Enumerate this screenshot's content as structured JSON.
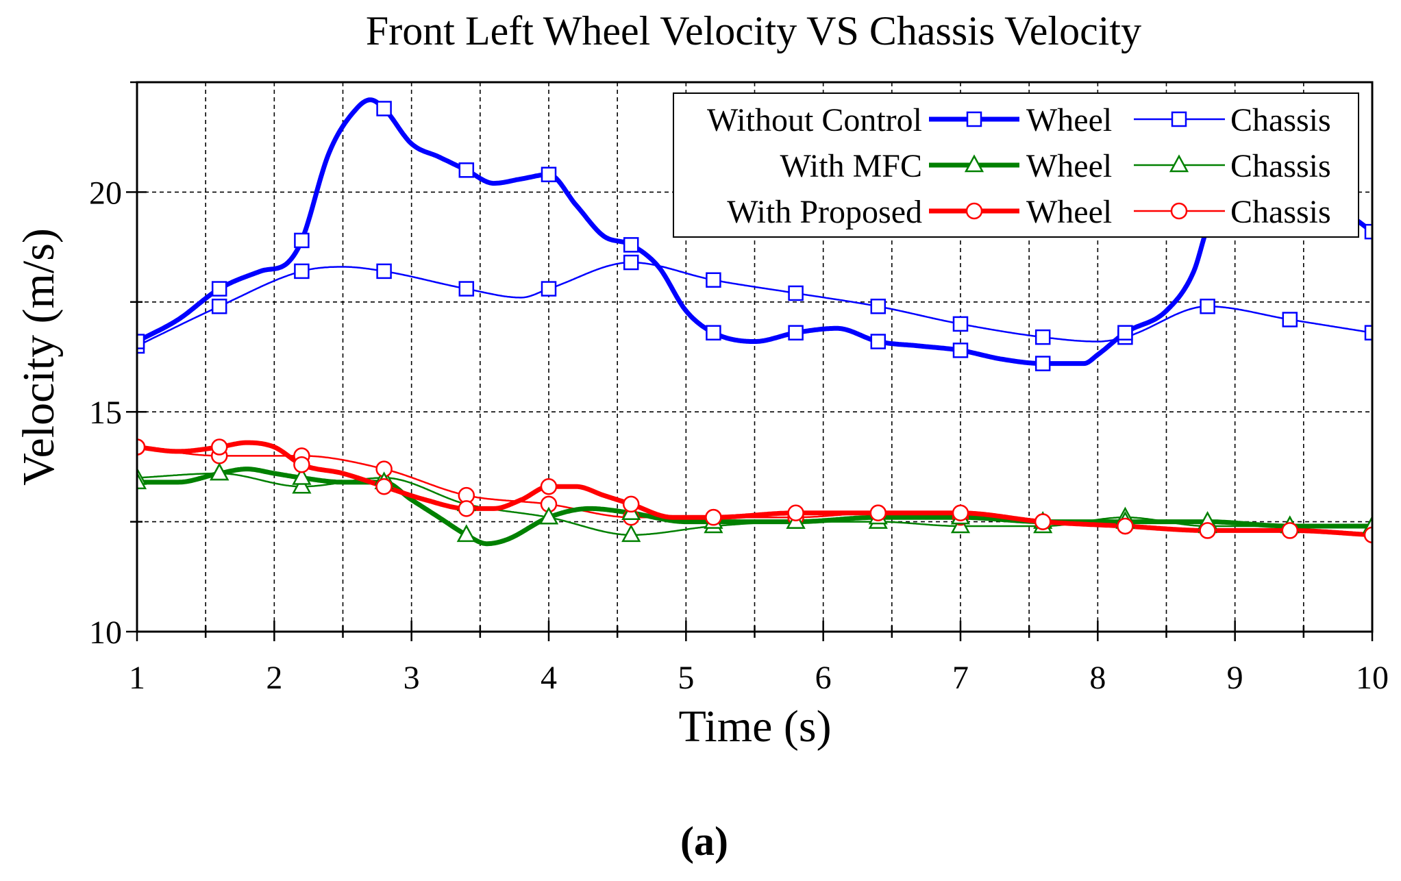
{
  "chart_data": {
    "type": "line",
    "title": "Front Left Wheel Velocity VS Chassis Velocity",
    "xlabel": "Time (s)",
    "ylabel": "Velocity (m/s)",
    "panel_label": "(a)",
    "xlim": [
      1,
      10
    ],
    "ylim": [
      10,
      22.5
    ],
    "x_ticks": [
      1,
      2,
      3,
      4,
      5,
      6,
      7,
      8,
      9,
      10
    ],
    "y_ticks": [
      10,
      15,
      20
    ],
    "grid": true,
    "legend_position": "top-right",
    "legend_rows": [
      {
        "label": "Without Control",
        "entries": [
          "Wheel",
          "Chassis"
        ]
      },
      {
        "label": "With MFC",
        "entries": [
          "Wheel",
          "Chassis"
        ]
      },
      {
        "label": "With Proposed",
        "entries": [
          "Wheel",
          "Chassis"
        ]
      }
    ],
    "colors": {
      "without_control": "#0000ff",
      "with_mfc": "#008000",
      "with_proposed": "#ff0000"
    },
    "marker_x": [
      1,
      1.6,
      2.2,
      2.8,
      3.4,
      4,
      4.6,
      5.2,
      5.8,
      6.4,
      7,
      7.6,
      8.2,
      8.8,
      9.4,
      10
    ],
    "series": [
      {
        "group": "Without Control",
        "name": "Wheel",
        "color": "#0000ff",
        "marker": "square",
        "weight": "thick",
        "x": [
          1,
          1.3,
          1.6,
          1.9,
          2.1,
          2.2,
          2.4,
          2.6,
          2.7,
          2.8,
          3.0,
          3.2,
          3.4,
          3.6,
          3.8,
          4.0,
          4.2,
          4.4,
          4.6,
          4.8,
          5.0,
          5.2,
          5.5,
          5.8,
          6.1,
          6.4,
          6.7,
          7.0,
          7.3,
          7.6,
          7.9,
          8.0,
          8.2,
          8.5,
          8.7,
          8.8,
          8.9,
          9.0,
          9.4,
          9.6,
          10
        ],
        "y": [
          16.6,
          17.1,
          17.8,
          18.2,
          18.4,
          18.9,
          20.9,
          21.9,
          22.1,
          21.9,
          21.1,
          20.8,
          20.5,
          20.2,
          20.3,
          20.4,
          19.7,
          19.0,
          18.8,
          18.3,
          17.3,
          16.8,
          16.6,
          16.8,
          16.9,
          16.6,
          16.5,
          16.4,
          16.2,
          16.1,
          16.1,
          16.3,
          16.8,
          17.3,
          18.2,
          19.2,
          19.8,
          20.2,
          20.3,
          20.0,
          19.1
        ]
      },
      {
        "group": "Without Control",
        "name": "Chassis",
        "color": "#0000ff",
        "marker": "square",
        "weight": "thin",
        "x": [
          1,
          1.6,
          2.2,
          2.5,
          2.8,
          3.4,
          3.8,
          4.0,
          4.6,
          5.2,
          5.8,
          6.4,
          7,
          7.6,
          8.0,
          8.2,
          8.8,
          9.4,
          10
        ],
        "y": [
          16.5,
          17.4,
          18.2,
          18.3,
          18.2,
          17.8,
          17.6,
          17.8,
          18.4,
          18.0,
          17.7,
          17.4,
          17.0,
          16.7,
          16.6,
          16.7,
          17.4,
          17.1,
          16.8
        ]
      },
      {
        "group": "With MFC",
        "name": "Wheel",
        "color": "#008000",
        "marker": "triangle",
        "weight": "thick",
        "x": [
          1,
          1.3,
          1.6,
          1.8,
          2.0,
          2.2,
          2.5,
          2.8,
          3.0,
          3.2,
          3.4,
          3.55,
          3.7,
          4.0,
          4.3,
          4.6,
          5.0,
          5.2,
          5.8,
          6.4,
          7,
          7.6,
          8.2,
          8.8,
          9.4,
          10
        ],
        "y": [
          13.4,
          13.4,
          13.6,
          13.7,
          13.6,
          13.5,
          13.4,
          13.4,
          13.0,
          12.6,
          12.2,
          12.0,
          12.1,
          12.6,
          12.8,
          12.7,
          12.5,
          12.5,
          12.5,
          12.6,
          12.6,
          12.5,
          12.5,
          12.5,
          12.4,
          12.4
        ]
      },
      {
        "group": "With MFC",
        "name": "Chassis",
        "color": "#008000",
        "marker": "triangle",
        "weight": "thin",
        "x": [
          1,
          1.6,
          2.2,
          2.8,
          3.4,
          4,
          4.6,
          5.2,
          5.8,
          6.4,
          7,
          7.6,
          8.2,
          8.8,
          9.4,
          10
        ],
        "y": [
          13.5,
          13.6,
          13.3,
          13.5,
          12.9,
          12.6,
          12.2,
          12.4,
          12.5,
          12.5,
          12.4,
          12.4,
          12.6,
          12.4,
          12.4,
          12.4
        ]
      },
      {
        "group": "With Proposed",
        "name": "Wheel",
        "color": "#ff0000",
        "marker": "circle",
        "weight": "thick",
        "x": [
          1,
          1.3,
          1.6,
          1.8,
          2.0,
          2.2,
          2.5,
          2.8,
          3.1,
          3.4,
          3.6,
          3.8,
          4.0,
          4.2,
          4.4,
          4.6,
          4.9,
          5.2,
          5.8,
          6.4,
          7,
          7.6,
          8.2,
          8.8,
          9.4,
          10
        ],
        "y": [
          14.2,
          14.1,
          14.2,
          14.3,
          14.2,
          13.8,
          13.6,
          13.3,
          13.0,
          12.8,
          12.8,
          13.0,
          13.3,
          13.3,
          13.1,
          12.9,
          12.6,
          12.6,
          12.7,
          12.7,
          12.7,
          12.5,
          12.4,
          12.3,
          12.3,
          12.2
        ]
      },
      {
        "group": "With Proposed",
        "name": "Chassis",
        "color": "#ff0000",
        "marker": "circle",
        "weight": "thin",
        "x": [
          1,
          1.6,
          2.2,
          2.8,
          3.4,
          4,
          4.6,
          5.2,
          5.8,
          6.4,
          7,
          7.6,
          8.2,
          8.8,
          9.4,
          10
        ],
        "y": [
          14.2,
          14.0,
          14.0,
          13.7,
          13.1,
          12.9,
          12.6,
          12.6,
          12.6,
          12.7,
          12.6,
          12.5,
          12.4,
          12.3,
          12.3,
          12.2
        ]
      }
    ]
  }
}
